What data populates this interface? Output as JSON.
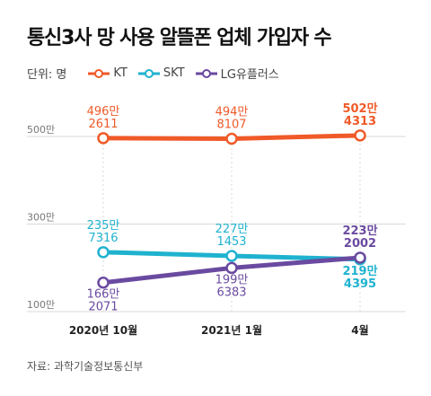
{
  "header": {
    "title": "통신3사 망 사용 알뜰폰 업체 가입자 수",
    "unit_label": "단위: 명"
  },
  "source": "자료: 과학기술정보통신부",
  "colors": {
    "KT": "#f05a28",
    "SKT": "#1fb2cf",
    "LG유플러스": "#6a4aa0",
    "grid": "#d9d9d9",
    "axis_text": "#777777"
  },
  "chart_data": {
    "type": "line",
    "title": "통신3사 망 사용 알뜰폰 업체 가입자 수",
    "ylabel": "단위: 명",
    "categories": [
      "2020년 10월",
      "2021년 1월",
      "4월"
    ],
    "y_ticks": [
      {
        "value": 5000000,
        "label": "500만"
      },
      {
        "value": 3000000,
        "label": "300만"
      },
      {
        "value": 1000000,
        "label": "100만"
      }
    ],
    "ylim": [
      1000000,
      5000000
    ],
    "grid": true,
    "legend_position": "top-left",
    "series": [
      {
        "name": "KT",
        "values": [
          4962611,
          4948107,
          5024313
        ],
        "labels_top": [
          "496만",
          "494만",
          "502만"
        ],
        "labels_bottom": [
          "2611",
          "8107",
          "4313"
        ]
      },
      {
        "name": "SKT",
        "values": [
          2357316,
          2271453,
          2194395
        ],
        "labels_top": [
          "235만",
          "227만",
          "219만"
        ],
        "labels_bottom": [
          "7316",
          "1453",
          "4395"
        ]
      },
      {
        "name": "LG유플러스",
        "values": [
          1662071,
          1996383,
          2232002
        ],
        "labels_top": [
          "166만",
          "199만",
          "223만"
        ],
        "labels_bottom": [
          "2071",
          "6383",
          "2002"
        ]
      }
    ]
  }
}
